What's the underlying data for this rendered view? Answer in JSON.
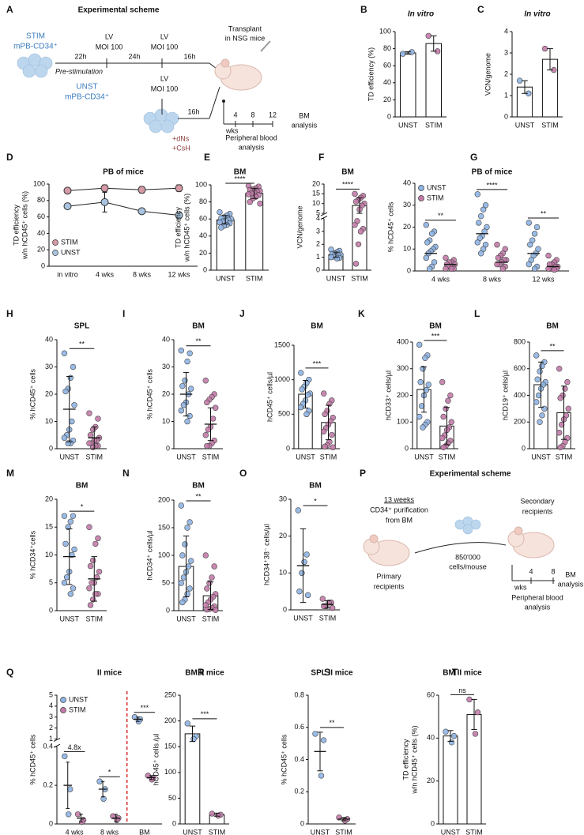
{
  "scheme_a": {
    "panel": "A",
    "title": "Experimental scheme",
    "stim": "STIM",
    "stim_cells": "mPB-CD34⁺",
    "t1": "22h",
    "prestim": "Pre-stimulation",
    "lv1": "LV",
    "moi1": "MOI 100",
    "t2": "24h",
    "lv2": "LV",
    "moi2": "MOI 100",
    "t3": "16h",
    "transplant": [
      "Transplant",
      "in NSG mice"
    ],
    "lv3": "LV",
    "moi3": "MOI 100",
    "t4": "16h",
    "unst": "UNST",
    "unst_cells": "mPB-CD34⁺",
    "additives": [
      "+dNs",
      "+CsH"
    ],
    "wks": "wks",
    "weeks": [
      4,
      8,
      12
    ],
    "bm": [
      "BM",
      "analysis"
    ],
    "pb": [
      "Peripheral blood",
      "analysis"
    ]
  },
  "scheme_p": {
    "panel": "P",
    "title": "Experimental scheme",
    "duration": "13 weeks",
    "purification": [
      "CD34⁺ purification",
      "from BM"
    ],
    "primary": [
      "Primary",
      "recipients"
    ],
    "dose": [
      "850'000",
      "cells/mouse"
    ],
    "secondary": [
      "Secondary",
      "recipients"
    ],
    "wks": "wks",
    "weeks": [
      4,
      8
    ],
    "bm": [
      "BM",
      "analysis"
    ],
    "pb": [
      "Peripheral blood",
      "analysis"
    ]
  },
  "chart_data": [
    {
      "panel": "B",
      "type": "bar",
      "title": "In vitro",
      "title_italic": true,
      "ylabel": [
        "TD efficiency (%)"
      ],
      "categories": [
        "UNST",
        "STIM"
      ],
      "values": [
        75,
        86
      ],
      "errors": [
        1.5,
        9
      ],
      "points": [
        [
          74,
          76
        ],
        [
          95,
          77
        ]
      ],
      "colors": [
        "#8fb4e3",
        "#c27ba8"
      ],
      "ylim": [
        0,
        100
      ],
      "yticks": [
        0,
        20,
        40,
        60,
        80,
        100
      ]
    },
    {
      "panel": "C",
      "type": "bar",
      "title": "In vitro",
      "title_italic": true,
      "ylabel": [
        "VCN/genome"
      ],
      "categories": [
        "UNST",
        "STIM"
      ],
      "values": [
        1.4,
        2.7
      ],
      "errors": [
        0.3,
        0.5
      ],
      "points": [
        [
          1.7,
          1.1
        ],
        [
          3.2,
          2.2
        ]
      ],
      "colors": [
        "#8fb4e3",
        "#c27ba8"
      ],
      "ylim": [
        0,
        4
      ],
      "yticks": [
        0,
        1,
        2,
        3,
        4
      ]
    },
    {
      "panel": "D",
      "type": "line",
      "title": "PB of mice",
      "ylabel": [
        "TD efficiency",
        "w/n hCD45⁺ cells (%)"
      ],
      "categories": [
        "in vitro",
        "4 wks",
        "8 wks",
        "12 wks"
      ],
      "series": [
        {
          "name": "STIM",
          "color": "#d49aa6",
          "values": [
            92,
            95,
            93,
            95
          ],
          "errors": [
            2,
            4,
            4,
            4
          ]
        },
        {
          "name": "UNST",
          "color": "#a9c4e0",
          "values": [
            73,
            78,
            67,
            62
          ],
          "errors": [
            1,
            12,
            2,
            4
          ]
        }
      ],
      "legend": "lower left",
      "ylim": [
        0,
        100
      ],
      "yticks": [
        0,
        20,
        40,
        60,
        80,
        100
      ]
    },
    {
      "panel": "E",
      "type": "bar",
      "title": "BM",
      "ylabel": [
        "TD efficiency",
        "w/n hCD45⁺ cells (%)"
      ],
      "categories": [
        "UNST",
        "STIM"
      ],
      "values": [
        59,
        90
      ],
      "errors": [
        5,
        6
      ],
      "points": [
        [
          68,
          66,
          64,
          62,
          61,
          60,
          59,
          58,
          57,
          56,
          55,
          53,
          52,
          50
        ],
        [
          99,
          98,
          96,
          95,
          94,
          93,
          92,
          91,
          90,
          89,
          88,
          86,
          84,
          80,
          78
        ]
      ],
      "colors": [
        "#8fb4e3",
        "#c27ba8"
      ],
      "sig": "****",
      "ylim": [
        0,
        100
      ],
      "yticks": [
        0,
        20,
        40,
        60,
        80,
        100
      ]
    },
    {
      "panel": "F",
      "type": "bar",
      "title": "BM",
      "ylabel": [
        "VCN/genome"
      ],
      "categories": [
        "UNST",
        "STIM"
      ],
      "values": [
        1.2,
        9
      ],
      "errors": [
        0.2,
        4
      ],
      "points": [
        [
          1.6,
          1.5,
          1.4,
          1.3,
          1.25,
          1.2,
          1.15,
          1.1,
          1.05,
          1.0,
          0.95,
          0.9
        ],
        [
          15,
          14,
          13,
          12,
          11,
          10,
          9,
          7,
          3.8,
          3.5,
          3.2,
          3,
          2,
          0.5
        ]
      ],
      "colors": [
        "#8fb4e3",
        "#c27ba8"
      ],
      "sig": "****",
      "ylim": [
        0,
        20
      ],
      "yticks": [
        0,
        1,
        2,
        3,
        4,
        5,
        10,
        15,
        20
      ],
      "ybreak": [
        4,
        5
      ]
    },
    {
      "panel": "G",
      "type": "grouped",
      "title": "PB of mice",
      "ylabel": [
        "% hCD45⁺ cells"
      ],
      "categories": [
        "4 wks",
        "8 wks",
        "12 wks"
      ],
      "series": [
        {
          "name": "UNST",
          "color": "#8fb4e3",
          "values": [
            8,
            17,
            8
          ],
          "points": [
            [
              21,
              18,
              17,
              14,
              13,
              11,
              10,
              9,
              8,
              6,
              4,
              2,
              1
            ],
            [
              35,
              30,
              28,
              25,
              22,
              20,
              18,
              16,
              15,
              13,
              12,
              10,
              8
            ],
            [
              22,
              20,
              17,
              14,
              12,
              10,
              8,
              7,
              5,
              3,
              2,
              1
            ]
          ]
        },
        {
          "name": "STIM",
          "color": "#c27ba8",
          "values": [
            3,
            4,
            2
          ],
          "points": [
            [
              6,
              5,
              4,
              4,
              3,
              3,
              2,
              2,
              2,
              1,
              1,
              1
            ],
            [
              12,
              10,
              8,
              7,
              6,
              5,
              5,
              4,
              3,
              3,
              2,
              1
            ],
            [
              7,
              5,
              4,
              3,
              3,
              2,
              2,
              1,
              1,
              1,
              1,
              0.5
            ]
          ]
        }
      ],
      "sig": [
        "**",
        "****",
        "**"
      ],
      "legend": "upper left",
      "ylim": [
        0,
        40
      ],
      "yticks": [
        0,
        10,
        20,
        30,
        40
      ]
    },
    {
      "panel": "H",
      "type": "dot",
      "title": "SPL",
      "ylabel": [
        "% hCD45⁺ cells"
      ],
      "categories": [
        "UNST",
        "STIM"
      ],
      "values": [
        14.5,
        4
      ],
      "errors": [
        12,
        4
      ],
      "points": [
        [
          35,
          30,
          26,
          22,
          21,
          16,
          10,
          7,
          5,
          4,
          3,
          2,
          2
        ],
        [
          13,
          11,
          8,
          7,
          5,
          4,
          3,
          3,
          2,
          2,
          1,
          1,
          0.5
        ]
      ],
      "colors": [
        "#8fb4e3",
        "#c27ba8"
      ],
      "sig": "**",
      "ylim": [
        0,
        40
      ],
      "yticks": [
        0,
        10,
        20,
        30,
        40
      ]
    },
    {
      "panel": "I",
      "type": "dot",
      "title": "BM",
      "ylabel": [
        "% hCD45⁺ cells"
      ],
      "categories": [
        "UNST",
        "STIM"
      ],
      "values": [
        20,
        9
      ],
      "errors": [
        8,
        6
      ],
      "points": [
        [
          36,
          35,
          32,
          25,
          23,
          22,
          20,
          17,
          16,
          14,
          12,
          10
        ],
        [
          25,
          20,
          19,
          18,
          17,
          15,
          11,
          8,
          7,
          5,
          3,
          2,
          1,
          1
        ]
      ],
      "colors": [
        "#8fb4e3",
        "#c27ba8"
      ],
      "sig": "**",
      "ylim": [
        0,
        40
      ],
      "yticks": [
        0,
        10,
        20,
        30,
        40
      ]
    },
    {
      "panel": "J",
      "type": "bar",
      "title": "BM",
      "ylabel": [
        "hCD45⁺ cells/µl"
      ],
      "categories": [
        "UNST",
        "STIM"
      ],
      "values": [
        790,
        380
      ],
      "errors": [
        200,
        250
      ],
      "points": [
        [
          1100,
          1000,
          950,
          900,
          860,
          800,
          780,
          700,
          650,
          600,
          550,
          500
        ],
        [
          800,
          700,
          650,
          550,
          500,
          450,
          400,
          350,
          300,
          250,
          200,
          100,
          50,
          30,
          20
        ]
      ],
      "colors": [
        "#8fb4e3",
        "#c27ba8"
      ],
      "sig": "***",
      "ylim": [
        0,
        1500
      ],
      "yticks": [
        0,
        500,
        1000,
        1500
      ]
    },
    {
      "panel": "K",
      "type": "bar",
      "title": "BM",
      "ylabel": [
        "hCD33⁺ cells/µl"
      ],
      "categories": [
        "UNST",
        "STIM"
      ],
      "values": [
        222,
        85
      ],
      "errors": [
        85,
        70
      ],
      "points": [
        [
          390,
          350,
          340,
          300,
          250,
          240,
          220,
          200,
          160,
          120,
          100,
          90,
          80
        ],
        [
          250,
          200,
          180,
          150,
          120,
          100,
          80,
          70,
          50,
          40,
          30,
          20,
          10,
          5
        ]
      ],
      "colors": [
        "#8fb4e3",
        "#c27ba8"
      ],
      "sig": "***",
      "ylim": [
        0,
        400
      ],
      "yticks": [
        0,
        100,
        200,
        300,
        400
      ]
    },
    {
      "panel": "L",
      "type": "bar",
      "title": "BM",
      "ylabel": [
        "hCD19⁺ cells/µl"
      ],
      "categories": [
        "UNST",
        "STIM"
      ],
      "values": [
        480,
        270
      ],
      "errors": [
        170,
        200
      ],
      "points": [
        [
          700,
          650,
          620,
          580,
          520,
          500,
          480,
          450,
          400,
          350,
          300,
          250,
          200
        ],
        [
          600,
          500,
          450,
          400,
          380,
          300,
          250,
          220,
          180,
          120,
          80,
          50,
          20,
          10
        ]
      ],
      "colors": [
        "#8fb4e3",
        "#c27ba8"
      ],
      "sig": "**",
      "ylim": [
        0,
        800
      ],
      "yticks": [
        0,
        200,
        400,
        600,
        800
      ]
    },
    {
      "panel": "M",
      "type": "dot",
      "title": "BM",
      "ylabel": [
        "% hCD34⁺cells"
      ],
      "categories": [
        "UNST",
        "STIM"
      ],
      "values": [
        9.7,
        5.7
      ],
      "errors": [
        5,
        4
      ],
      "points": [
        [
          17,
          17,
          16,
          15,
          12,
          11,
          10,
          7,
          6,
          5,
          4,
          3
        ],
        [
          15,
          13,
          12,
          9,
          8,
          7,
          6,
          5,
          5,
          4,
          3,
          3,
          2,
          1
        ]
      ],
      "colors": [
        "#8fb4e3",
        "#c27ba8"
      ],
      "sig": "*",
      "ylim": [
        0,
        20
      ],
      "yticks": [
        0,
        5,
        10,
        15,
        20
      ]
    },
    {
      "panel": "N",
      "type": "bar",
      "title": "BM",
      "ylabel": [
        "hCD34⁺ cells/µl"
      ],
      "categories": [
        "UNST",
        "STIM"
      ],
      "values": [
        80,
        27
      ],
      "errors": [
        55,
        25
      ],
      "points": [
        [
          190,
          160,
          150,
          120,
          100,
          90,
          80,
          70,
          60,
          50,
          40,
          30,
          20,
          15
        ],
        [
          100,
          80,
          60,
          50,
          40,
          30,
          25,
          20,
          15,
          10,
          8,
          5,
          3,
          2,
          1
        ]
      ],
      "colors": [
        "#8fb4e3",
        "#c27ba8"
      ],
      "sig": "**",
      "ylim": [
        0,
        200
      ],
      "yticks": [
        0,
        50,
        100,
        150,
        200
      ]
    },
    {
      "panel": "O",
      "type": "dot",
      "title": "BM",
      "ylabel": [
        "hCD34⁺38⁻ cells/µl"
      ],
      "categories": [
        "UNST",
        "STIM"
      ],
      "values": [
        12,
        1.5
      ],
      "errors": [
        10,
        1
      ],
      "points": [
        [
          27,
          15,
          13,
          10,
          5,
          4
        ],
        [
          3,
          2,
          2,
          1,
          1,
          0.5
        ]
      ],
      "colors": [
        "#8fb4e3",
        "#c27ba8"
      ],
      "sig": "*",
      "ylim": [
        0,
        30
      ],
      "yticks": [
        0,
        10,
        20,
        30
      ]
    },
    {
      "panel": "Q",
      "type": "grouped",
      "title": "II mice",
      "ylabel": [
        "% hCD45⁺ cells"
      ],
      "categories": [
        "4 wks",
        "8 wks",
        "BM"
      ],
      "series": [
        {
          "name": "UNST",
          "color": "#8fb4e3",
          "values": [
            0.2,
            0.18,
            2.8
          ],
          "errors": [
            0.12,
            0.04,
            0.2
          ],
          "points": [
            [
              0.35,
              0.18,
              0.05
            ],
            [
              0.22,
              0.18,
              0.13
            ],
            [
              3,
              2.8,
              2.6
            ]
          ]
        },
        {
          "name": "STIM",
          "color": "#c27ba8",
          "values": [
            0.03,
            0.03,
            0.24
          ],
          "errors": [
            0.02,
            0.02,
            0.01
          ],
          "points": [
            [
              0.05,
              0.02,
              0.01
            ],
            [
              0.04,
              0.03,
              0.02
            ],
            [
              0.25,
              0.24,
              0.23
            ]
          ]
        }
      ],
      "sig": [
        "4.8x",
        "*",
        "***"
      ],
      "separator": true,
      "legend": "upper left",
      "ylim": [
        0,
        5
      ],
      "yticks": [
        0,
        0.2,
        0.4,
        1,
        2,
        3,
        4,
        5
      ],
      "ybreak": [
        0.4,
        1
      ]
    },
    {
      "panel": "R",
      "type": "bar",
      "title": "BM II mice",
      "ylabel": [
        "hCD45⁺ cells /µl"
      ],
      "categories": [
        "UNST",
        "STIM"
      ],
      "values": [
        175,
        18
      ],
      "errors": [
        15,
        3
      ],
      "points": [
        [
          195,
          170,
          165
        ],
        [
          20,
          18,
          16
        ]
      ],
      "colors": [
        "#8fb4e3",
        "#c27ba8"
      ],
      "sig": "***",
      "ylim": [
        0,
        250
      ],
      "yticks": [
        0,
        50,
        100,
        150,
        200,
        250
      ]
    },
    {
      "panel": "S",
      "type": "dot",
      "title": "SPL II mice",
      "ylabel": [
        "% hCD45⁺ cells"
      ],
      "categories": [
        "UNST",
        "STIM"
      ],
      "values": [
        0.45,
        0.03
      ],
      "errors": [
        0.12,
        0.01
      ],
      "points": [
        [
          0.56,
          0.52,
          0.3
        ],
        [
          0.04,
          0.03,
          0.02
        ]
      ],
      "colors": [
        "#8fb4e3",
        "#c27ba8"
      ],
      "sig": "**",
      "ylim": [
        0,
        0.8
      ],
      "yticks": [
        0,
        0.2,
        0.4,
        0.6,
        0.8
      ]
    },
    {
      "panel": "T",
      "type": "bar",
      "title": "BM II mice",
      "ylabel": [
        "TD efficiency",
        "w/n hCD45⁺ cells (%)"
      ],
      "categories": [
        "UNST",
        "STIM"
      ],
      "values": [
        41,
        51
      ],
      "errors": [
        2.5,
        7
      ],
      "points": [
        [
          43,
          41,
          38
        ],
        [
          58,
          52,
          42
        ]
      ],
      "colors": [
        "#8fb4e3",
        "#c27ba8"
      ],
      "sig": "ns",
      "ylim": [
        0,
        60
      ],
      "yticks": [
        0,
        20,
        40,
        60
      ]
    }
  ]
}
